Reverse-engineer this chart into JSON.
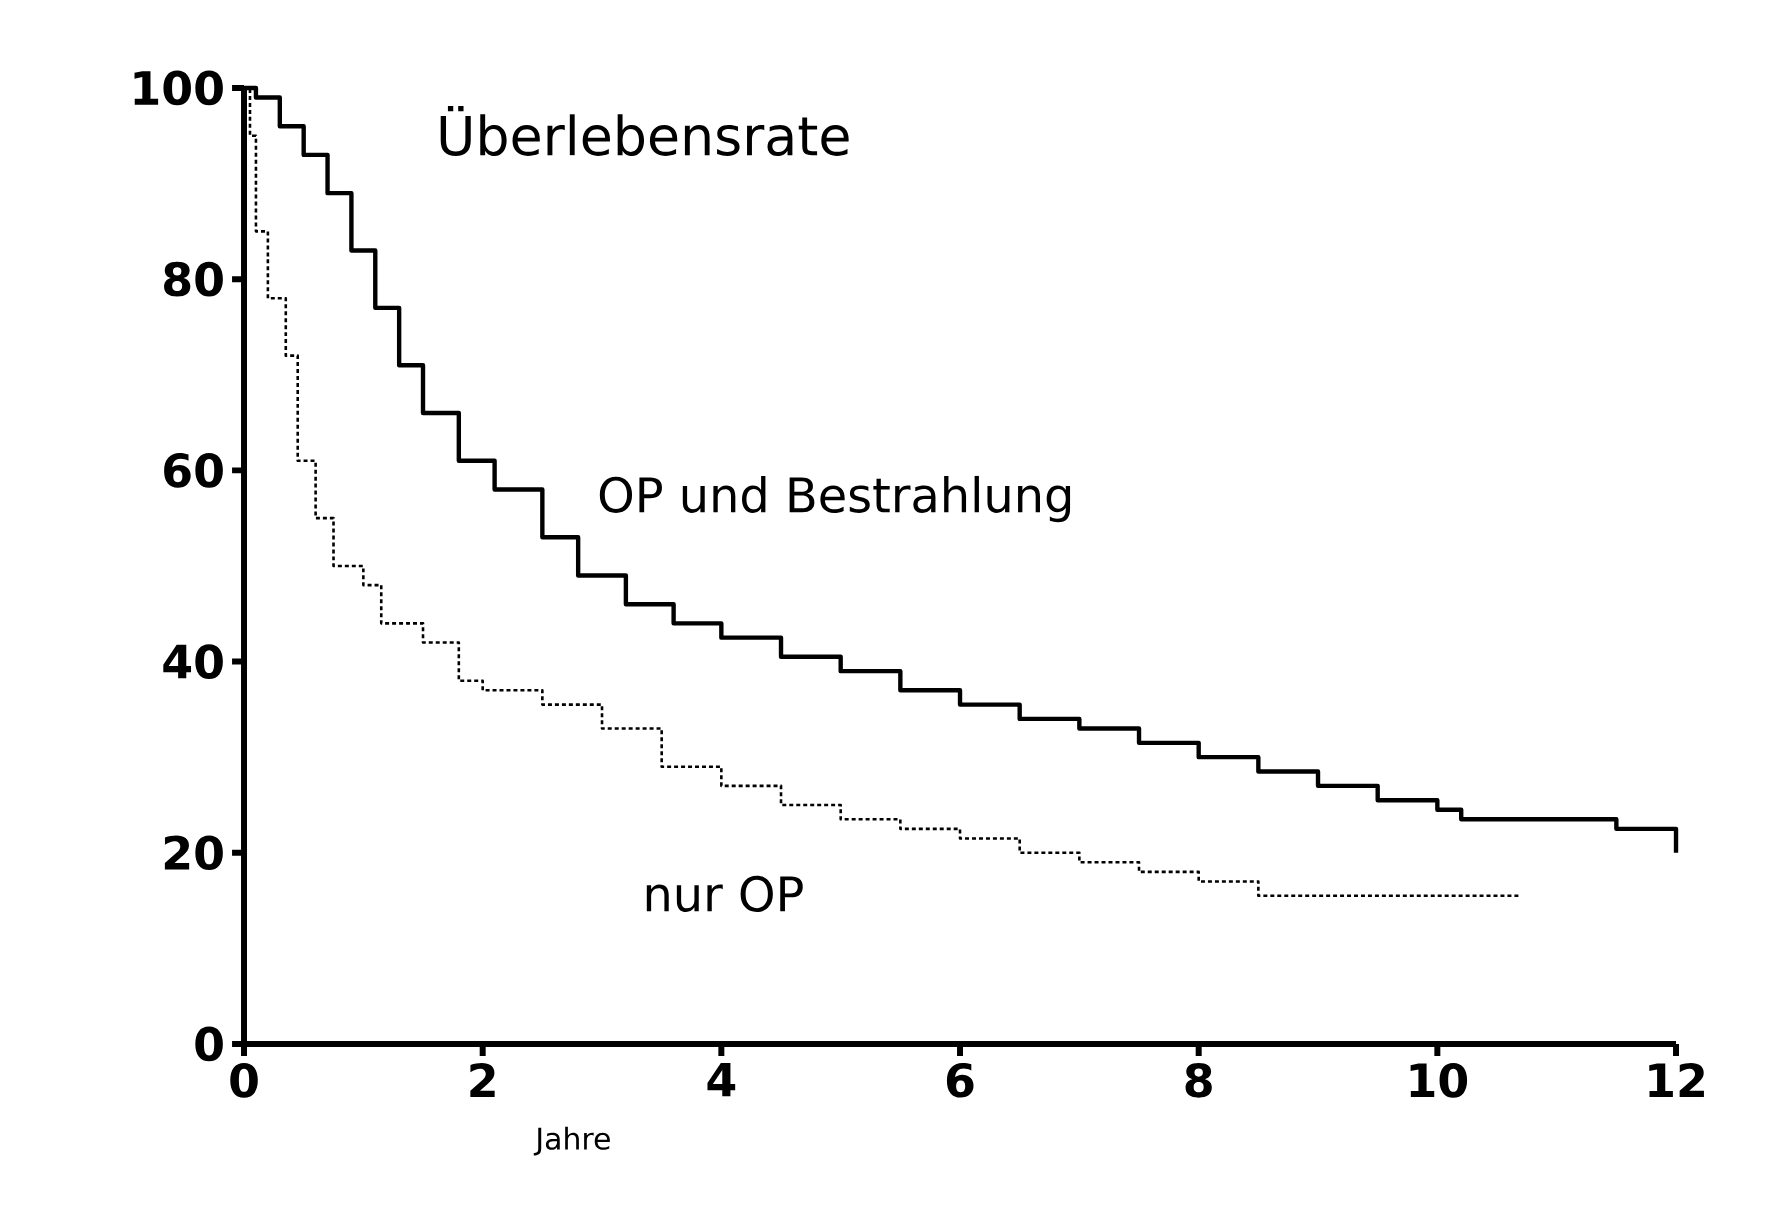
{
  "chart_data": {
    "type": "step",
    "title": "Überlebensrate",
    "xlabel": "Jahre",
    "xlim": [
      0,
      12
    ],
    "ylim": [
      0,
      100
    ],
    "xticks": [
      0,
      2,
      4,
      6,
      8,
      10,
      12
    ],
    "yticks": [
      0,
      20,
      40,
      60,
      80,
      100
    ],
    "grid": false,
    "legend": false,
    "marker": "none",
    "series": [
      {
        "name": "OP und Bestrahlung",
        "color": "#000000",
        "line_style": "solid",
        "x": [
          0,
          0.1,
          0.3,
          0.5,
          0.7,
          0.9,
          1.1,
          1.3,
          1.5,
          1.8,
          2.1,
          2.5,
          2.8,
          3.2,
          3.6,
          4,
          4.5,
          5,
          5.5,
          6,
          6.5,
          7,
          7.5,
          8,
          8.5,
          9,
          9.5,
          10,
          10.2,
          11.5,
          12,
          12
        ],
        "values": [
          100,
          99,
          96,
          93,
          89,
          83,
          77,
          71,
          66,
          61,
          58,
          53,
          49,
          46,
          44,
          42.5,
          40.5,
          39,
          37,
          35.5,
          34,
          33,
          31.5,
          30,
          28.5,
          27,
          25.5,
          24.5,
          23.5,
          22.5,
          22.5,
          20
        ]
      },
      {
        "name": "nur OP",
        "color": "#000000",
        "line_style": "dotted",
        "x": [
          0,
          0.05,
          0.1,
          0.2,
          0.35,
          0.45,
          0.6,
          0.75,
          1,
          1.15,
          1.5,
          1.8,
          2,
          2.5,
          3,
          3.5,
          4,
          4.5,
          5,
          5.5,
          6,
          6.5,
          7,
          7.5,
          8,
          8.5,
          10.7
        ],
        "values": [
          100,
          95,
          85,
          78,
          72,
          61,
          55,
          50,
          48,
          44,
          42,
          38,
          37,
          35.5,
          33,
          29,
          27,
          25,
          23.5,
          22.5,
          21.5,
          20,
          19,
          18,
          17,
          15.5,
          15.5
        ]
      }
    ]
  }
}
